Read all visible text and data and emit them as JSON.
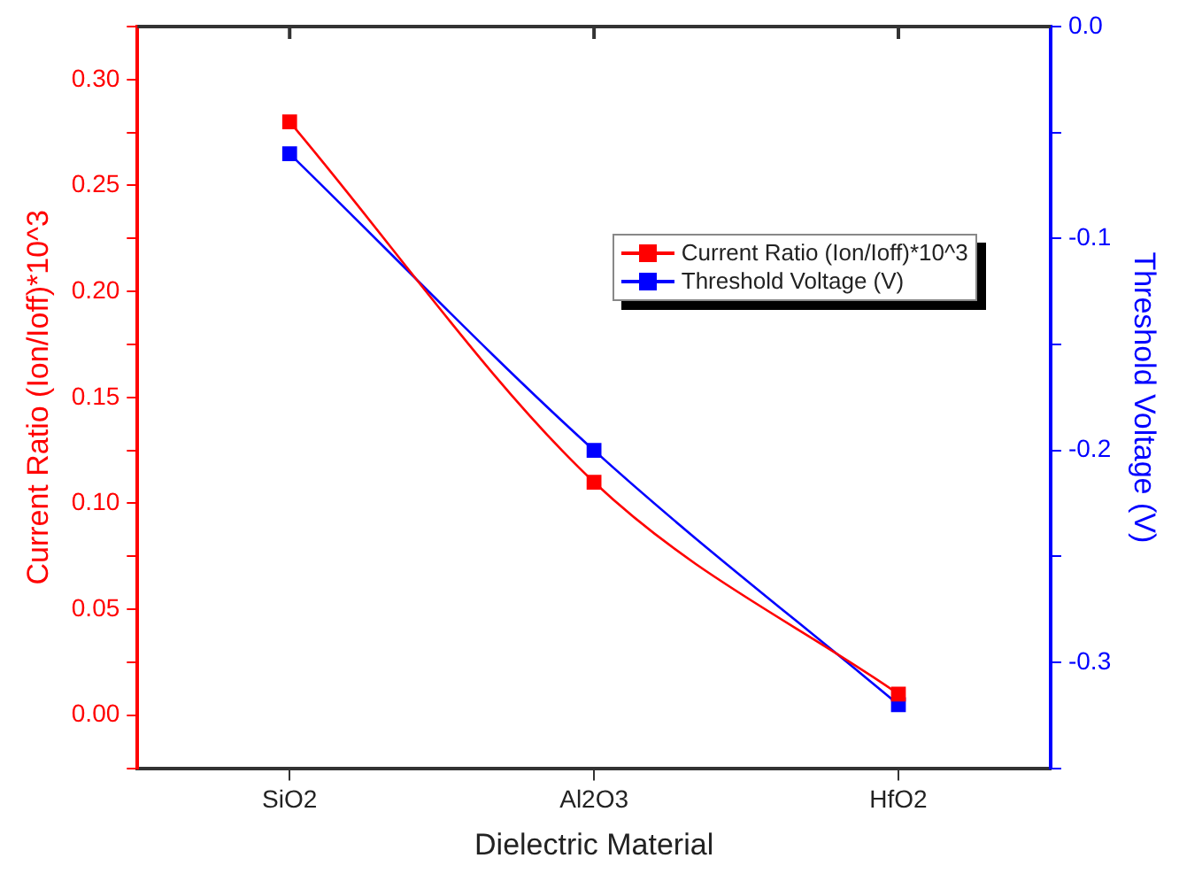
{
  "chart_data": {
    "type": "line",
    "xlabel": "Dielectric Material",
    "ylabel": "Current Ratio (Ion/Ioff)*10^3",
    "y2label": "Threshold Voltage (V)",
    "categories": [
      "SiO2",
      "Al2O3",
      "HfO2"
    ],
    "series": [
      {
        "name": "Current Ratio (Ion/Ioff)*10^3",
        "color": "#ff0000",
        "values": [
          0.28,
          0.11,
          0.01
        ]
      },
      {
        "name": "Threshold Voltage (V)",
        "color": "#0000ff",
        "axis": "y2",
        "values": [
          -0.06,
          -0.2,
          -0.32
        ]
      }
    ],
    "ylim": [
      -0.025,
      0.325
    ],
    "yticks": [
      {
        "value": -0.025,
        "label": null
      },
      {
        "value": 0,
        "label": "0.00"
      },
      {
        "value": 0.025,
        "label": null
      },
      {
        "value": 0.05,
        "label": "0.05"
      },
      {
        "value": 0.075,
        "label": null
      },
      {
        "value": 0.1,
        "label": "0.10"
      },
      {
        "value": 0.125,
        "label": null
      },
      {
        "value": 0.15,
        "label": "0.15"
      },
      {
        "value": 0.175,
        "label": null
      },
      {
        "value": 0.2,
        "label": "0.20"
      },
      {
        "value": 0.225,
        "label": null
      },
      {
        "value": 0.25,
        "label": "0.25"
      },
      {
        "value": 0.275,
        "label": null
      },
      {
        "value": 0.3,
        "label": "0.30"
      },
      {
        "value": 0.325,
        "label": null
      }
    ],
    "y2lim": [
      -0.35,
      0
    ],
    "y2ticks": [
      {
        "value": -0.35,
        "label": null
      },
      {
        "value": -0.3,
        "label": "-0.3"
      },
      {
        "value": -0.25,
        "label": null
      },
      {
        "value": -0.2,
        "label": "-0.2"
      },
      {
        "value": -0.15,
        "label": null
      },
      {
        "value": -0.1,
        "label": "-0.1"
      },
      {
        "value": -0.05,
        "label": null
      },
      {
        "value": 0,
        "label": "0.0"
      }
    ],
    "grid": false,
    "legend": "top right",
    "marker": "square",
    "line_style": "solid"
  }
}
